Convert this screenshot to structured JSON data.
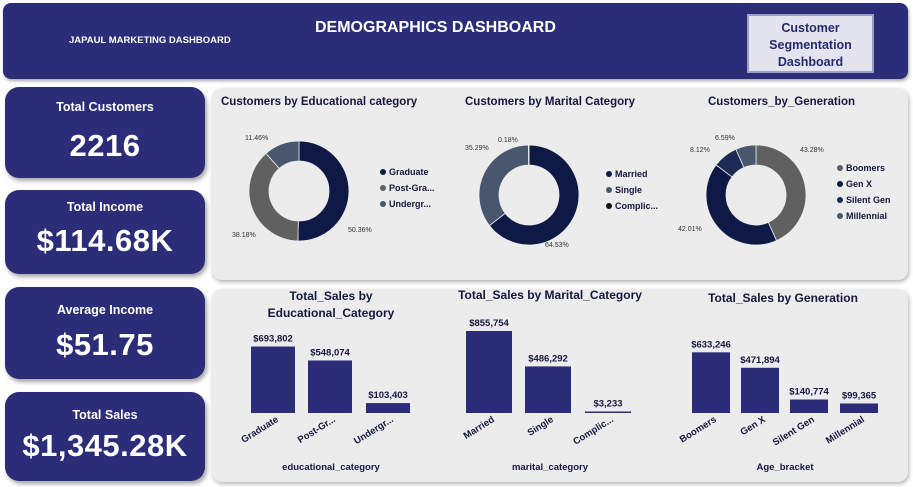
{
  "header": {
    "brand": "JAPAUL MARKETING DASHBOARD",
    "title": "DEMOGRAPHICS DASHBOARD",
    "nav_button": "Customer Segmentation Dashboard"
  },
  "kpis": [
    {
      "label": "Total Customers",
      "value": "2216"
    },
    {
      "label": "Total Income",
      "value": "$114.68K"
    },
    {
      "label": "Average Income",
      "value": "$51.75"
    },
    {
      "label": "Total Sales",
      "value": "$1,345.28K"
    }
  ],
  "colors": {
    "navy": "#2c2d78",
    "bar": "#2c2d78",
    "dark_navy": "#0e1a45",
    "gray": "#606060",
    "slate": "#48566e",
    "panel": "#ececec"
  },
  "chart_data": [
    {
      "type": "pie",
      "title": "Customers by Educational category",
      "categories": [
        "Graduate",
        "Post-Gra...",
        "Undergr..."
      ],
      "values": [
        50.36,
        38.18,
        11.46
      ],
      "data_labels": [
        "50.36%",
        "38.18%",
        "11.46%"
      ],
      "colors": [
        "#0e1a45",
        "#606060",
        "#48566e"
      ],
      "legend": "right"
    },
    {
      "type": "pie",
      "title": "Customers by Marital Category",
      "categories": [
        "Married",
        "Single",
        "Complic..."
      ],
      "values": [
        64.53,
        35.29,
        0.18
      ],
      "data_labels": [
        "64.53%",
        "35.29%",
        "0.18%"
      ],
      "colors": [
        "#0e1a45",
        "#48566e",
        "#101010"
      ],
      "legend": "right"
    },
    {
      "type": "pie",
      "title": "Customers_by_Generation",
      "categories": [
        "Boomers",
        "Gen X",
        "Silent Gen",
        "Millennial"
      ],
      "values": [
        43.28,
        42.01,
        8.12,
        6.59
      ],
      "data_labels": [
        "43.28%",
        "42.01%",
        "8.12%",
        "6.59%"
      ],
      "colors": [
        "#606060",
        "#0e1a45",
        "#1c2a55",
        "#48566e"
      ],
      "legend": "right"
    },
    {
      "type": "bar",
      "title": "Total_Sales by Educational_Category",
      "xlabel": "educational_category",
      "categories": [
        "Graduate",
        "Post-Gr...",
        "Undergr..."
      ],
      "values": [
        693802,
        548074,
        103403
      ],
      "data_labels": [
        "$693,802",
        "$548,074",
        "$103,403"
      ]
    },
    {
      "type": "bar",
      "title": "Total_Sales by Marital_Category",
      "xlabel": "marital_category",
      "categories": [
        "Married",
        "Single",
        "Complic..."
      ],
      "values": [
        855754,
        486292,
        3233
      ],
      "data_labels": [
        "$855,754",
        "$486,292",
        "$3,233"
      ]
    },
    {
      "type": "bar",
      "title": "Total_Sales by Generation",
      "xlabel": "Age_bracket",
      "categories": [
        "Boomers",
        "Gen X",
        "Silent Gen",
        "Millennial"
      ],
      "values": [
        633246,
        471894,
        140774,
        99365
      ],
      "data_labels": [
        "$633,246",
        "$471,894",
        "$140,774",
        "$99,365"
      ]
    }
  ]
}
